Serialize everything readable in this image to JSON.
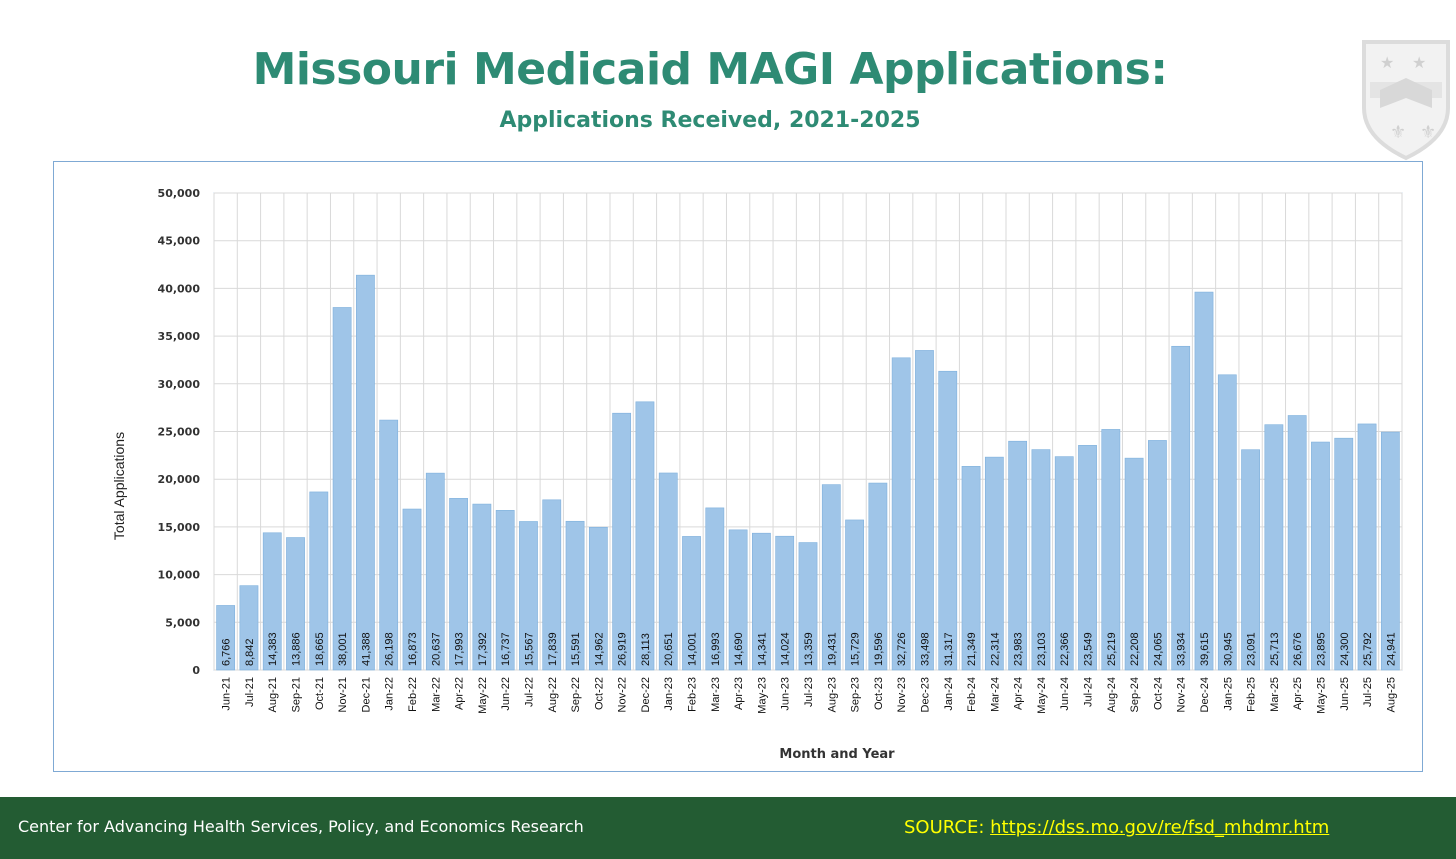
{
  "header": {
    "title": "Missouri Medicaid MAGI Applications:",
    "subtitle": "Applications Received, 2021-2025"
  },
  "footer": {
    "organization": "Center for Advancing Health Services, Policy, and Economics Research",
    "source_label": "SOURCE: ",
    "source_link": "https://dss.mo.gov/re/fsd_mhdmr.htm"
  },
  "logo": {
    "icon": "university-shield-icon"
  },
  "colors": {
    "title": "#2e8b74",
    "bar": "#9fc5e8",
    "bar_stroke": "#7eb0dc",
    "grid": "#d9d9d9",
    "footer_bg": "#235c33",
    "source_text": "#ffff00"
  },
  "chart_data": {
    "type": "bar",
    "title": "Missouri Medicaid MAGI Applications:",
    "subtitle": "Applications Received, 2021-2025",
    "xlabel": "Month and Year",
    "ylabel": "Total Applications",
    "ylim": [
      0,
      50000
    ],
    "yticks": [
      0,
      5000,
      10000,
      15000,
      20000,
      25000,
      30000,
      35000,
      40000,
      45000,
      50000
    ],
    "ytick_labels": [
      "0",
      "5,000",
      "10,000",
      "15,000",
      "20,000",
      "25,000",
      "30,000",
      "35,000",
      "40,000",
      "45,000",
      "50,000"
    ],
    "grid": true,
    "categories": [
      "Jun-21",
      "Jul-21",
      "Aug-21",
      "Sep-21",
      "Oct-21",
      "Nov-21",
      "Dec-21",
      "Jan-22",
      "Feb-22",
      "Mar-22",
      "Apr-22",
      "May-22",
      "Jun-22",
      "Jul-22",
      "Aug-22",
      "Sep-22",
      "Oct-22",
      "Nov-22",
      "Dec-22",
      "Jan-23",
      "Feb-23",
      "Mar-23",
      "Apr-23",
      "May-23",
      "Jun-23",
      "Jul-23",
      "Aug-23",
      "Sep-23",
      "Oct-23",
      "Nov-23",
      "Dec-23",
      "Jan-24",
      "Feb-24",
      "Mar-24",
      "Apr-24",
      "May-24",
      "Jun-24",
      "Jul-24",
      "Aug-24",
      "Sep-24",
      "Oct-24",
      "Nov-24",
      "Dec-24",
      "Jan-25",
      "Feb-25",
      "Mar-25",
      "Apr-25",
      "May-25",
      "Jun-25",
      "Jul-25",
      "Aug-25"
    ],
    "values": [
      6766,
      8842,
      14383,
      13886,
      18665,
      38001,
      41388,
      26198,
      16873,
      20637,
      17993,
      17392,
      16737,
      15567,
      17839,
      15591,
      14962,
      26919,
      28113,
      20651,
      14001,
      16993,
      14690,
      14341,
      14024,
      13359,
      19431,
      15729,
      19596,
      32726,
      33498,
      31317,
      21349,
      22314,
      23983,
      23103,
      22366,
      23549,
      25219,
      22208,
      24065,
      33934,
      39615,
      30945,
      23091,
      25713,
      26676,
      23895,
      24300,
      25792,
      24941
    ],
    "data_labels": [
      "6,766",
      "8,842",
      "14,383",
      "13,886",
      "18,665",
      "38,001",
      "41,388",
      "26,198",
      "16,873",
      "20,637",
      "17,993",
      "17,392",
      "16,737",
      "15,567",
      "17,839",
      "15,591",
      "14,962",
      "26,919",
      "28,113",
      "20,651",
      "14,001",
      "16,993",
      "14,690",
      "14,341",
      "14,024",
      "13,359",
      "19,431",
      "15,729",
      "19,596",
      "32,726",
      "33,498",
      "31,317",
      "21,349",
      "22,314",
      "23,983",
      "23,103",
      "22,366",
      "23,549",
      "25,219",
      "22,208",
      "24,065",
      "33,934",
      "39,615",
      "30,945",
      "23,091",
      "25,713",
      "26,676",
      "23,895",
      "24,300",
      "25,792",
      "24,941"
    ]
  }
}
